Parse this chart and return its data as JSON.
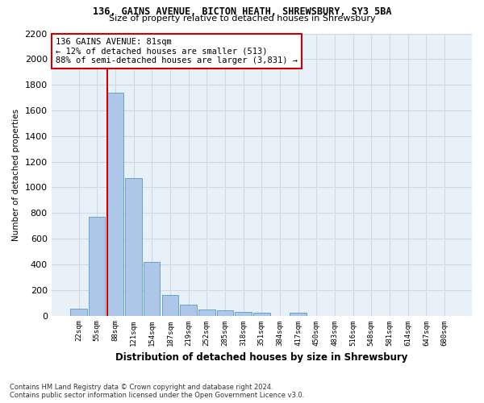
{
  "title_line1": "136, GAINS AVENUE, BICTON HEATH, SHREWSBURY, SY3 5BA",
  "title_line2": "Size of property relative to detached houses in Shrewsbury",
  "xlabel": "Distribution of detached houses by size in Shrewsbury",
  "ylabel": "Number of detached properties",
  "footnote": "Contains HM Land Registry data © Crown copyright and database right 2024.\nContains public sector information licensed under the Open Government Licence v3.0.",
  "bin_labels": [
    "22sqm",
    "55sqm",
    "88sqm",
    "121sqm",
    "154sqm",
    "187sqm",
    "219sqm",
    "252sqm",
    "285sqm",
    "318sqm",
    "351sqm",
    "384sqm",
    "417sqm",
    "450sqm",
    "483sqm",
    "516sqm",
    "548sqm",
    "581sqm",
    "614sqm",
    "647sqm",
    "680sqm"
  ],
  "bar_heights": [
    55,
    770,
    1740,
    1070,
    420,
    160,
    85,
    50,
    40,
    30,
    25,
    0,
    20,
    0,
    0,
    0,
    0,
    0,
    0,
    0,
    0
  ],
  "bar_color": "#aec6e8",
  "bar_edge_color": "#5599cc",
  "grid_color": "#d0d8e8",
  "bg_color": "#e8f0f8",
  "annotation_text": "136 GAINS AVENUE: 81sqm\n← 12% of detached houses are smaller (513)\n88% of semi-detached houses are larger (3,831) →",
  "vline_color": "#cc0000",
  "annotation_box_color": "#cc0000",
  "ylim": [
    0,
    2200
  ],
  "yticks": [
    0,
    200,
    400,
    600,
    800,
    1000,
    1200,
    1400,
    1600,
    1800,
    2000,
    2200
  ]
}
